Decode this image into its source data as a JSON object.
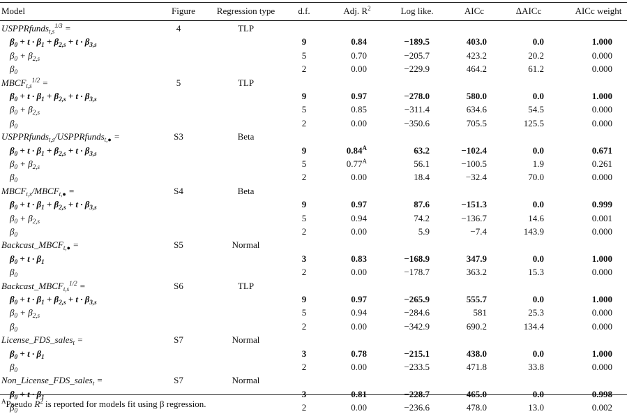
{
  "header": {
    "model": "Model",
    "figure": "Figure",
    "regression_type": "Regression type",
    "df": "d.f.",
    "adj_r2": "Adj. R",
    "adj_r2_sup": "2",
    "log_like": "Log like.",
    "aicc": "AICc",
    "delta_aicc": "ΔAICc",
    "aicc_weight": "AICc weight"
  },
  "groups": [
    {
      "model": "USPPRfunds",
      "model_sub": "t,s",
      "model_sup": "1/3",
      "model_tail": " =",
      "figure": "4",
      "regression_type": "TLP",
      "rows": [
        {
          "formula": "β0 + t · β1 + β2,s + t · β3,s",
          "df": "9",
          "r2": "0.84",
          "ll": "−189.5",
          "aicc": "403.0",
          "dai": "0.0",
          "wt": "1.000",
          "bold": true
        },
        {
          "formula": "β0 + β2,s",
          "df": "5",
          "r2": "0.70",
          "ll": "−205.7",
          "aicc": "423.2",
          "dai": "20.2",
          "wt": "0.000",
          "bold": false
        },
        {
          "formula": "β0",
          "df": "2",
          "r2": "0.00",
          "ll": "−229.9",
          "aicc": "464.2",
          "dai": "61.2",
          "wt": "0.000",
          "bold": false
        }
      ]
    },
    {
      "model": "MBCF",
      "model_sub": "t,s",
      "model_sup": "1/2",
      "model_tail": " =",
      "figure": "5",
      "regression_type": "TLP",
      "rows": [
        {
          "formula": "β0 + t · β1 + β2,s + t · β3,s",
          "df": "9",
          "r2": "0.97",
          "ll": "−278.0",
          "aicc": "580.0",
          "dai": "0.0",
          "wt": "1.000",
          "bold": true
        },
        {
          "formula": "β0 + β2,s",
          "df": "5",
          "r2": "0.85",
          "ll": "−311.4",
          "aicc": "634.6",
          "dai": "54.5",
          "wt": "0.000",
          "bold": false
        },
        {
          "formula": "β0",
          "df": "2",
          "r2": "0.00",
          "ll": "−350.6",
          "aicc": "705.5",
          "dai": "125.5",
          "wt": "0.000",
          "bold": false
        }
      ]
    },
    {
      "model": "USPPRfunds",
      "model_sub": "t,s",
      "model_sup": "",
      "model_tail": "/USPPRfunds",
      "model_sub2": "t,●",
      "model_tail2": " =",
      "figure": "S3",
      "regression_type": "Beta",
      "rows": [
        {
          "formula": "β0 + t · β1 + β2,s + t · β3,s",
          "df": "9",
          "r2": "0.84",
          "r2_sup": "A",
          "ll": "63.2",
          "aicc": "−102.4",
          "dai": "0.0",
          "wt": "0.671",
          "bold": true
        },
        {
          "formula": "β0 + β2,s",
          "df": "5",
          "r2": "0.77",
          "r2_sup": "A",
          "ll": "56.1",
          "aicc": "−100.5",
          "dai": "1.9",
          "wt": "0.261",
          "bold": false
        },
        {
          "formula": "β0",
          "df": "2",
          "r2": "0.00",
          "ll": "18.4",
          "aicc": "−32.4",
          "dai": "70.0",
          "wt": "0.000",
          "bold": false
        }
      ]
    },
    {
      "model": "MBCF",
      "model_sub": "t,s",
      "model_sup": "",
      "model_tail": "/MBCF",
      "model_sub2": "t,●",
      "model_tail2": " =",
      "figure": "S4",
      "regression_type": "Beta",
      "rows": [
        {
          "formula": "β0 + t · β1 + β2,s + t · β3,s",
          "df": "9",
          "r2": "0.97",
          "ll": "87.6",
          "aicc": "−151.3",
          "dai": "0.0",
          "wt": "0.999",
          "bold": true
        },
        {
          "formula": "β0 + β2,s",
          "df": "5",
          "r2": "0.94",
          "ll": "74.2",
          "aicc": "−136.7",
          "dai": "14.6",
          "wt": "0.001",
          "bold": false
        },
        {
          "formula": "β0",
          "df": "2",
          "r2": "0.00",
          "ll": "5.9",
          "aicc": "−7.4",
          "dai": "143.9",
          "wt": "0.000",
          "bold": false
        }
      ]
    },
    {
      "model": "Backcast_MBCF",
      "model_sub": "t,●",
      "model_sup": "",
      "model_tail": " =",
      "figure": "S5",
      "regression_type": "Normal",
      "rows": [
        {
          "formula": "β0 + t · β1",
          "df": "3",
          "r2": "0.83",
          "ll": "−168.9",
          "aicc": "347.9",
          "dai": "0.0",
          "wt": "1.000",
          "bold": true
        },
        {
          "formula": "β0",
          "df": "2",
          "r2": "0.00",
          "ll": "−178.7",
          "aicc": "363.2",
          "dai": "15.3",
          "wt": "0.000",
          "bold": false
        }
      ]
    },
    {
      "model": "Backcast_MBCF",
      "model_sub": "t,s",
      "model_sup": "1/2",
      "model_tail": " =",
      "figure": "S6",
      "regression_type": "TLP",
      "rows": [
        {
          "formula": "β0 + t · β1 + β2,s + t · β3,s",
          "df": "9",
          "r2": "0.97",
          "ll": "−265.9",
          "aicc": "555.7",
          "dai": "0.0",
          "wt": "1.000",
          "bold": true
        },
        {
          "formula": "β0 + β2,s",
          "df": "5",
          "r2": "0.94",
          "ll": "−284.6",
          "aicc": "581",
          "dai": "25.3",
          "wt": "0.000",
          "bold": false
        },
        {
          "formula": "β0",
          "df": "2",
          "r2": "0.00",
          "ll": "−342.9",
          "aicc": "690.2",
          "dai": "134.4",
          "wt": "0.000",
          "bold": false
        }
      ]
    },
    {
      "model": "License_FDS_sales",
      "model_sub": "t",
      "model_sup": "",
      "model_tail": " =",
      "figure": "S7",
      "regression_type": "Normal",
      "rows": [
        {
          "formula": "β0 + t · β1",
          "df": "3",
          "r2": "0.78",
          "ll": "−215.1",
          "aicc": "438.0",
          "dai": "0.0",
          "wt": "1.000",
          "bold": true
        },
        {
          "formula": "β0",
          "df": "2",
          "r2": "0.00",
          "ll": "−233.5",
          "aicc": "471.8",
          "dai": "33.8",
          "wt": "0.000",
          "bold": false
        }
      ]
    },
    {
      "model": "Non_License_FDS_sales",
      "model_sub": "t",
      "model_sup": "",
      "model_tail": " =",
      "figure": "S7",
      "regression_type": "Normal",
      "rows": [
        {
          "formula": "β0 + t · β1",
          "df": "3",
          "r2": "0.81",
          "ll": "−228.7",
          "aicc": "465.0",
          "dai": "0.0",
          "wt": "0.998",
          "bold": true
        },
        {
          "formula": "β0",
          "df": "2",
          "r2": "0.00",
          "ll": "−236.6",
          "aicc": "478.0",
          "dai": "13.0",
          "wt": "0.002",
          "bold": false
        }
      ]
    }
  ],
  "footnote": {
    "marker": "A",
    "text_before": "Pseudo ",
    "r": "R",
    "r_sup": "2",
    "text_after": " is reported for models fit using β regression."
  }
}
